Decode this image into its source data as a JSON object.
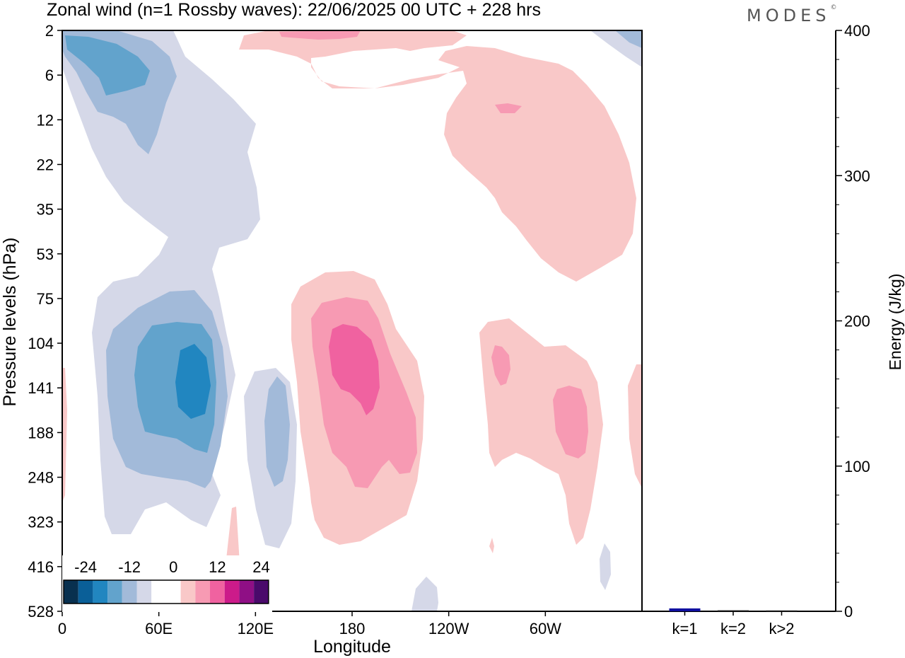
{
  "header": {
    "title": "Zonal wind (n=1 Rossby waves):  22/06/2025  00 UTC  + 228 hrs",
    "brand": "MODES",
    "brand_mark": "©"
  },
  "colors": {
    "neg": [
      "#08304f",
      "#0a5f98",
      "#2186c0",
      "#62a3cc",
      "#a2bad9",
      "#d5d8e8"
    ],
    "zero": "#ffffff",
    "pos": [
      "#f9c8c8",
      "#f79ab3",
      "#f062a0",
      "#cc1b8a",
      "#8f0f85",
      "#4a0a6b"
    ],
    "energy_k1": "#1010a0",
    "energy_other": "#202020"
  },
  "chart_data": [
    {
      "type": "heatmap",
      "title": "Zonal wind (n=1 Rossby waves):  22/06/2025  00 UTC  + 228 hrs",
      "xlabel": "Longitude",
      "ylabel": "Pressure levels (hPa)",
      "xticks": [
        "0",
        "60E",
        "120E",
        "180",
        "120W",
        "60W"
      ],
      "yticks": [
        "2",
        "6",
        "12",
        "22",
        "35",
        "53",
        "75",
        "104",
        "141",
        "188",
        "248",
        "323",
        "416",
        "528"
      ],
      "colorbar_levels": [
        -24,
        -12,
        0,
        12,
        24
      ],
      "colorbar_labels": [
        "-24",
        "-12",
        "0",
        "12",
        "24"
      ],
      "features": [
        {
          "lon": 70,
          "level": "141",
          "value": -22,
          "sign": "negative"
        },
        {
          "lon": 30,
          "level": "6",
          "value": -12,
          "sign": "negative"
        },
        {
          "lon": 128,
          "level": "188",
          "value": -6,
          "sign": "negative"
        },
        {
          "lon": 185,
          "level": "141",
          "value": 16,
          "sign": "positive"
        },
        {
          "lon": 275,
          "level": "188",
          "value": 8,
          "sign": "positive"
        },
        {
          "lon": 243,
          "level": "141",
          "value": 7,
          "sign": "positive"
        },
        {
          "lon": 255,
          "level": "12",
          "value": 6,
          "sign": "positive"
        }
      ]
    },
    {
      "type": "bar",
      "categories": [
        "k=1",
        "k=2",
        "k>2"
      ],
      "values": [
        2.0,
        0.7,
        0.6
      ],
      "ylabel": "Energy (J/kg)",
      "ylim": [
        0,
        400
      ],
      "yticks": [
        "0",
        "100",
        "200",
        "300",
        "400"
      ]
    }
  ]
}
